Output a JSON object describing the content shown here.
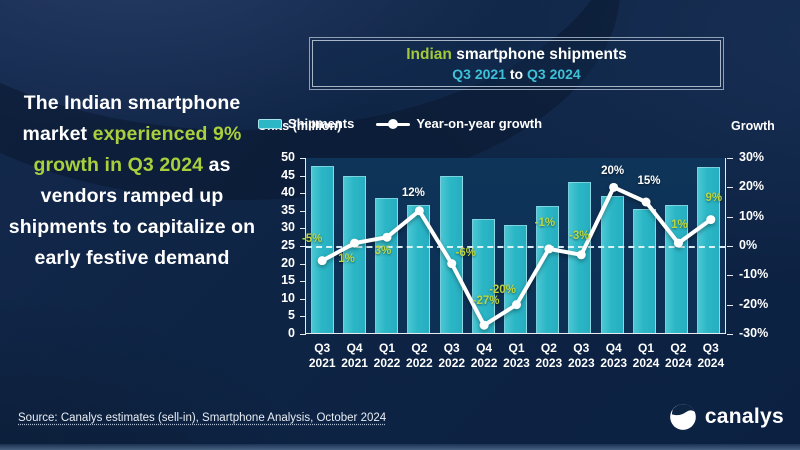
{
  "headline": {
    "part1": "The Indian smartphone market ",
    "highlight": "experienced 9% growth in Q3 2024",
    "part2": " as vendors ramped up shipments to capitalize on early festive demand"
  },
  "chart_title": {
    "accent": "Indian",
    "rest": " smartphone shipments",
    "range_start": "Q3 2021",
    "range_to": " to ",
    "range_end": "Q3 2024"
  },
  "axes_titles": {
    "left": "Units (million)",
    "right": "Growth"
  },
  "legend": {
    "shipments": "Shipments",
    "growth": "Year-on-year growth"
  },
  "chart_data": {
    "type": "bar",
    "subtype": "bar+line combo",
    "categories": [
      "Q3 2021",
      "Q4 2021",
      "Q1 2022",
      "Q2 2022",
      "Q3 2022",
      "Q4 2022",
      "Q1 2023",
      "Q2 2023",
      "Q3 2023",
      "Q4 2023",
      "Q1 2024",
      "Q2 2024",
      "Q3 2024"
    ],
    "series": [
      {
        "name": "Shipments",
        "type": "bar",
        "unit": "million units",
        "values": [
          47.5,
          44.5,
          38.5,
          36.4,
          44.6,
          32.4,
          30.6,
          36.1,
          43.0,
          38.9,
          35.3,
          36.4,
          47.1
        ]
      },
      {
        "name": "Year-on-year growth",
        "type": "line",
        "unit": "percent",
        "values": [
          -5,
          1,
          3,
          12,
          -6,
          -27,
          -20,
          -1,
          -3,
          20,
          15,
          1,
          9
        ],
        "point_labels": [
          "-5%",
          "1%",
          "3%",
          "12%",
          "-6%",
          "-27%",
          "-20%",
          "-1%",
          "-3%",
          "20%",
          "15%",
          "1%",
          "9%"
        ],
        "white_label_indices": [
          3,
          9,
          10
        ]
      }
    ],
    "left_axis": {
      "title": "Units (million)",
      "min": 0,
      "max": 50,
      "step": 5,
      "tick_labels": [
        "50",
        "45",
        "40",
        "35",
        "30",
        "25",
        "20",
        "15",
        "10",
        "5",
        "0"
      ]
    },
    "right_axis": {
      "title": "Growth",
      "min": -30,
      "max": 30,
      "step": 10,
      "tick_labels": [
        "30%",
        "20%",
        "10%",
        "0%",
        "-10%",
        "-20%",
        "-30%"
      ]
    },
    "zero_line": true,
    "legend_position": "top",
    "colors": {
      "bar": "#2bb7c6",
      "line": "#ffffff",
      "label_lime": "#bcd63f",
      "label_white": "#ffffff",
      "accent_green": "#a4c939",
      "accent_cyan": "#3ec1d6"
    }
  },
  "source": "Source: Canalys estimates (sell-in), Smartphone Analysis, October 2024",
  "logo": {
    "text": "canalys"
  }
}
